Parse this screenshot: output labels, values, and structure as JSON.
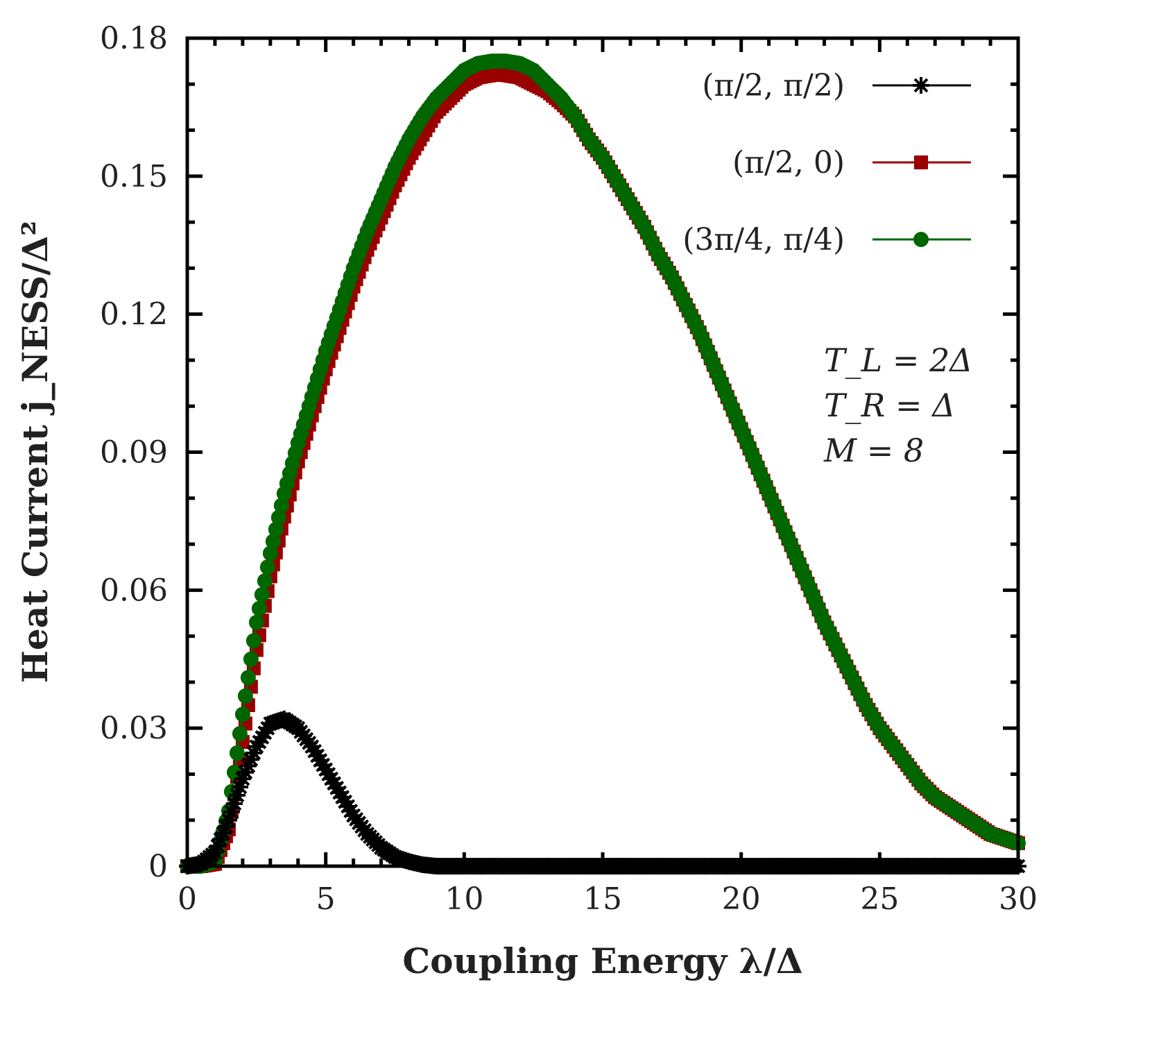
{
  "chart_data": {
    "type": "line",
    "xlabel": "Coupling Energy λ/Δ",
    "ylabel": "Heat Current j_NESS/Δ²",
    "xlim": [
      0,
      30
    ],
    "ylim": [
      0,
      0.18
    ],
    "xticks": [
      "0",
      "5",
      "10",
      "15",
      "20",
      "25",
      "30"
    ],
    "yticks": [
      "0",
      "0.03",
      "0.06",
      "0.09",
      "0.12",
      "0.15",
      "0.18"
    ],
    "grid": false,
    "legend_position": "top-right",
    "annotations": [
      "T_L = 2Δ",
      "T_R = Δ",
      "M = 8"
    ],
    "x": [
      0,
      0.5,
      1,
      1.5,
      2,
      2.5,
      3,
      3.5,
      4,
      4.5,
      5,
      5.5,
      6,
      6.5,
      7,
      7.5,
      8,
      8.5,
      9,
      9.5,
      10,
      10.5,
      11,
      11.5,
      12,
      12.5,
      13,
      13.5,
      14,
      14.5,
      15,
      15.5,
      16,
      16.5,
      17,
      17.5,
      18,
      18.5,
      19,
      19.5,
      20,
      20.5,
      21,
      21.5,
      22,
      22.5,
      23,
      23.5,
      24,
      24.5,
      25,
      25.5,
      26,
      26.5,
      27,
      27.5,
      28,
      28.5,
      29,
      29.5,
      30
    ],
    "series": [
      {
        "name": "(π/2, π/2)",
        "color": "#000000",
        "marker": "asterisk",
        "values": [
          0,
          0.0005,
          0.003,
          0.01,
          0.019,
          0.026,
          0.031,
          0.032,
          0.03,
          0.026,
          0.021,
          0.016,
          0.011,
          0.007,
          0.004,
          0.002,
          0.001,
          0.0003,
          0,
          0,
          0,
          0,
          0,
          0,
          0,
          0,
          0,
          0,
          0,
          0,
          0,
          0,
          0,
          0,
          0,
          0,
          0,
          0,
          0,
          0,
          0,
          0,
          0,
          0,
          0,
          0,
          0,
          0,
          0,
          0,
          0,
          0,
          0,
          0,
          0,
          0,
          0,
          0,
          0,
          0,
          0
        ]
      },
      {
        "name": "(π/2, 0)",
        "color": "#990000",
        "marker": "square",
        "values": [
          0,
          0,
          0.0005,
          0.008,
          0.027,
          0.047,
          0.063,
          0.076,
          0.088,
          0.098,
          0.108,
          0.117,
          0.126,
          0.134,
          0.141,
          0.148,
          0.154,
          0.159,
          0.164,
          0.167,
          0.17,
          0.1715,
          0.172,
          0.172,
          0.1715,
          0.17,
          0.1685,
          0.166,
          0.163,
          0.158,
          0.154,
          0.149,
          0.144,
          0.139,
          0.133,
          0.128,
          0.122,
          0.116,
          0.109,
          0.102,
          0.095,
          0.088,
          0.081,
          0.074,
          0.067,
          0.06,
          0.053,
          0.047,
          0.041,
          0.035,
          0.03,
          0.026,
          0.022,
          0.018,
          0.015,
          0.013,
          0.011,
          0.009,
          0.007,
          0.006,
          0.005
        ]
      },
      {
        "name": "(3π/4, π/4)",
        "color": "#006600",
        "marker": "circle",
        "values": [
          0,
          0,
          0.001,
          0.012,
          0.033,
          0.053,
          0.068,
          0.081,
          0.092,
          0.102,
          0.112,
          0.121,
          0.13,
          0.138,
          0.145,
          0.152,
          0.158,
          0.163,
          0.167,
          0.17,
          0.173,
          0.1745,
          0.175,
          0.175,
          0.1745,
          0.173,
          0.17,
          0.167,
          0.163,
          0.158,
          0.154,
          0.149,
          0.144,
          0.139,
          0.133,
          0.128,
          0.122,
          0.116,
          0.109,
          0.102,
          0.095,
          0.088,
          0.081,
          0.074,
          0.067,
          0.06,
          0.053,
          0.047,
          0.041,
          0.035,
          0.03,
          0.026,
          0.022,
          0.018,
          0.015,
          0.013,
          0.011,
          0.009,
          0.007,
          0.006,
          0.005
        ]
      }
    ]
  }
}
